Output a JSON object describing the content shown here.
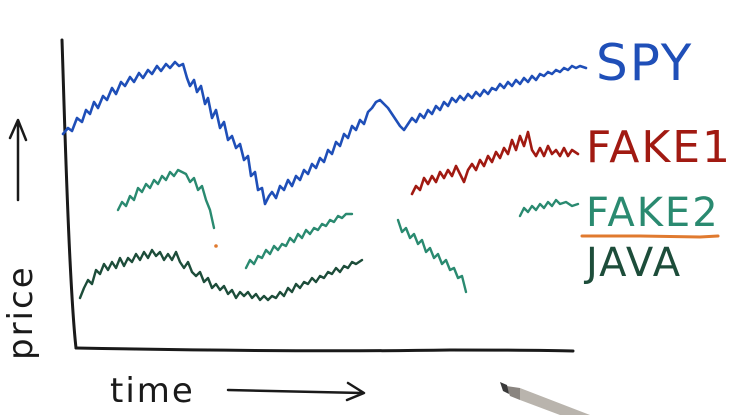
{
  "labels": {
    "y_axis": "price",
    "x_axis": "time",
    "spy": "SPY",
    "fake1": "FAKE1",
    "fake2": "FAKE2",
    "java": "JAVA"
  },
  "colors": {
    "ink": "#1a1a1a",
    "spy": "#1f4fb8",
    "fake1": "#a11a12",
    "fake2": "#2a8a70",
    "java": "#1d4d3a",
    "underline": "#e07a2f"
  },
  "icons": {
    "pen": "stylus-pen-icon"
  }
}
